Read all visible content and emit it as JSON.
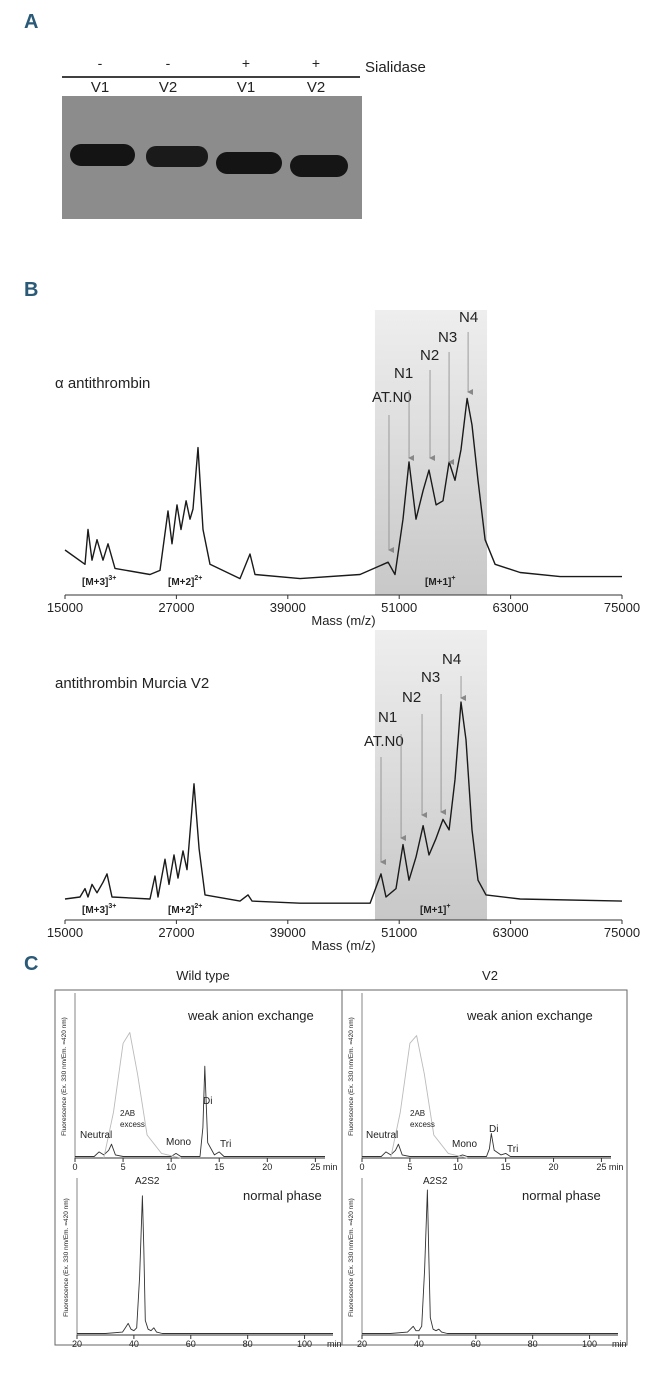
{
  "figure": {
    "panels": [
      "A",
      "B",
      "C"
    ],
    "gel": {
      "treatment_label": "Sialidase",
      "treatment": [
        "-",
        "-",
        "+",
        "+"
      ],
      "lanes": [
        "V1",
        "V2",
        "V1",
        "V2"
      ]
    },
    "columns": [
      "Wild type",
      "V2"
    ]
  },
  "chart_data": [
    {
      "type": "line",
      "title": "α antithrombin",
      "xlabel": "Mass (m/z)",
      "xlim": [
        15000,
        75000
      ],
      "xticks": [
        15000,
        27000,
        39000,
        51000,
        63000,
        75000
      ],
      "ylim": [
        -5,
        100
      ],
      "shaded_range": [
        48390,
        60460
      ],
      "peaks": [
        {
          "label": "AT.N0",
          "x": 49900
        },
        {
          "label": "N1",
          "x": 52060
        },
        {
          "label": "N2",
          "x": 54320
        },
        {
          "label": "N3",
          "x": 56370
        },
        {
          "label": "N4",
          "x": 58420
        }
      ],
      "charge_labels": [
        {
          "text": "[M+3]",
          "sup": "3+"
        },
        {
          "text": "[M+2]",
          "sup": "2+"
        },
        {
          "text": "[M+1]",
          "sup": "+"
        }
      ],
      "series": [
        {
          "color": "#1a1a1a",
          "x": [
            15000,
            17150,
            17480,
            17910,
            18450,
            19090,
            19630,
            20390,
            24160,
            25230,
            26100,
            26530,
            27070,
            27500,
            28040,
            28470,
            28790,
            29330,
            29870,
            30620,
            33850,
            34930,
            35470,
            40320,
            46780,
            49800,
            50550,
            51410,
            52060,
            52810,
            53570,
            54210,
            54970,
            55720,
            56370,
            57010,
            57660,
            58310,
            58840,
            59490,
            60250,
            61330,
            64020,
            68330,
            75000
          ],
          "values": [
            17,
            10,
            27,
            12,
            22,
            12,
            20,
            8,
            5,
            7,
            36,
            20,
            39,
            27,
            41,
            32,
            37,
            67,
            27,
            10,
            3,
            15,
            5,
            3,
            5,
            11,
            5,
            32,
            60,
            32,
            46,
            56,
            39,
            41,
            60,
            51,
            66,
            91,
            78,
            51,
            22,
            10,
            6,
            4,
            4
          ]
        }
      ]
    },
    {
      "type": "line",
      "title": "antithrombin Murcia V2",
      "xlabel": "Mass (m/z)",
      "xlim": [
        15000,
        75000
      ],
      "xticks": [
        15000,
        27000,
        39000,
        51000,
        63000,
        75000
      ],
      "ylim": [
        -5,
        100
      ],
      "shaded_range": [
        48390,
        60460
      ],
      "peaks": [
        {
          "label": "AT.N0",
          "x": 49040
        },
        {
          "label": "N1",
          "x": 51200
        },
        {
          "label": "N2",
          "x": 53460
        },
        {
          "label": "N3",
          "x": 55510
        },
        {
          "label": "N4",
          "x": 57660
        }
      ],
      "charge_labels": [
        {
          "text": "[M+3]",
          "sup": "3+"
        },
        {
          "text": "[M+2]",
          "sup": "2+"
        },
        {
          "text": "[M+1]",
          "sup": "+"
        }
      ],
      "series": [
        {
          "color": "#1a1a1a",
          "x": [
            15000,
            16620,
            17150,
            17480,
            17910,
            18450,
            19090,
            19520,
            20060,
            24160,
            24700,
            25020,
            25770,
            26200,
            26740,
            27170,
            27710,
            28140,
            28900,
            29440,
            30080,
            33850,
            34710,
            35150,
            40320,
            47860,
            49040,
            49580,
            50660,
            51410,
            52060,
            52810,
            53570,
            54210,
            54970,
            55720,
            56370,
            57010,
            57660,
            58200,
            58840,
            59490,
            60350,
            64020,
            75000
          ],
          "values": [
            5,
            6,
            10,
            6,
            12,
            8,
            13,
            17,
            6,
            5,
            16,
            6,
            24,
            12,
            26,
            15,
            28,
            19,
            60,
            29,
            7,
            4,
            7,
            4,
            3,
            3,
            17,
            6,
            10,
            31,
            14,
            25,
            40,
            26,
            34,
            43,
            38,
            62,
            99,
            81,
            38,
            14,
            7,
            5,
            4
          ]
        }
      ]
    },
    {
      "type": "line",
      "ylabel": "Fluorescence (Ex. 330 nm/Em. =420 nm)",
      "xlim": [
        0,
        26
      ],
      "xticks": [
        0,
        5,
        10,
        15,
        20,
        {
          "value": 25,
          "label": "25 min"
        }
      ],
      "ylim": [
        0,
        100
      ],
      "annotations": [
        "weak anion exchange",
        "Neutral",
        "2AB",
        "excess",
        "Mono",
        "Di",
        "Tri"
      ],
      "series": [
        {
          "color": "#333333",
          "x": [
            0,
            2,
            2.5,
            3,
            3.5,
            3.8,
            4.2,
            5,
            8,
            10,
            10.5,
            11,
            11.5,
            13,
            13.3,
            13.5,
            13.8,
            14.5,
            15,
            15.5,
            17,
            26
          ],
          "values": [
            1,
            1,
            4,
            2,
            5,
            9,
            2,
            1,
            1,
            1,
            3,
            1,
            1,
            1,
            20,
            60,
            10,
            2,
            4,
            1,
            1,
            1
          ]
        },
        {
          "color": "#bbbbbb",
          "x": [
            3,
            4,
            5,
            5.7,
            6.5,
            7.5,
            9,
            11
          ],
          "values": [
            0,
            30,
            75,
            82,
            55,
            15,
            3,
            0
          ]
        }
      ]
    },
    {
      "type": "line",
      "ylabel": "Fluorescence (Ex. 330 nm/Em. =420 nm)",
      "xlim": [
        0,
        26
      ],
      "xticks": [
        0,
        5,
        10,
        15,
        20,
        {
          "value": 25,
          "label": "25 min"
        }
      ],
      "ylim": [
        0,
        100
      ],
      "annotations": [
        "weak anion exchange",
        "Neutral",
        "2AB",
        "excess",
        "Mono",
        "Di",
        "Tri"
      ],
      "series": [
        {
          "color": "#333333",
          "x": [
            0,
            2,
            2.5,
            3,
            3.5,
            3.8,
            4.2,
            5,
            8,
            10,
            10.5,
            11,
            11.5,
            13,
            13.3,
            13.5,
            13.8,
            14.5,
            15,
            15.5,
            17,
            26
          ],
          "values": [
            1,
            1,
            4,
            2,
            5,
            9,
            2,
            1,
            1,
            1,
            2,
            1,
            1,
            1,
            6,
            16,
            5,
            2,
            3,
            1,
            1,
            1
          ]
        },
        {
          "color": "#bbbbbb",
          "x": [
            3,
            4,
            5,
            5.7,
            6.5,
            7.5,
            9,
            11
          ],
          "values": [
            0,
            30,
            75,
            80,
            55,
            15,
            3,
            0
          ]
        }
      ]
    },
    {
      "type": "line",
      "ylabel": "Fluorescence (Ex. 330 nm/Em. =420 nm)",
      "xlabel": "min",
      "xlim": [
        20,
        110
      ],
      "xticks": [
        20,
        40,
        60,
        80,
        100
      ],
      "ylim": [
        0,
        100
      ],
      "annotations": [
        "normal phase",
        "A2S2"
      ],
      "series": [
        {
          "color": "#333333",
          "x": [
            20,
            30,
            36,
            37,
            38,
            39,
            40,
            41,
            42,
            43,
            43.5,
            44,
            45,
            46,
            47,
            48,
            50,
            60,
            70,
            110
          ],
          "values": [
            1,
            1,
            2,
            5,
            8,
            4,
            3,
            5,
            40,
            96,
            60,
            10,
            4,
            3,
            5,
            2,
            1,
            1,
            1,
            1
          ]
        }
      ]
    },
    {
      "type": "line",
      "ylabel": "Fluorescence (Ex. 330 nm/Em. =420 nm)",
      "xlabel": "min",
      "xlim": [
        20,
        110
      ],
      "xticks": [
        20,
        40,
        60,
        80,
        100
      ],
      "ylim": [
        0,
        100
      ],
      "annotations": [
        "normal phase",
        "A2S2"
      ],
      "series": [
        {
          "color": "#333333",
          "x": [
            20,
            30,
            36,
            37,
            38,
            39,
            40,
            41,
            42,
            43,
            43.5,
            44,
            45,
            46,
            47,
            48,
            50,
            60,
            70,
            110
          ],
          "values": [
            1,
            1,
            2,
            4,
            6,
            3,
            3,
            6,
            45,
            100,
            55,
            12,
            4,
            3,
            4,
            2,
            1,
            1,
            1,
            1
          ]
        }
      ]
    }
  ]
}
